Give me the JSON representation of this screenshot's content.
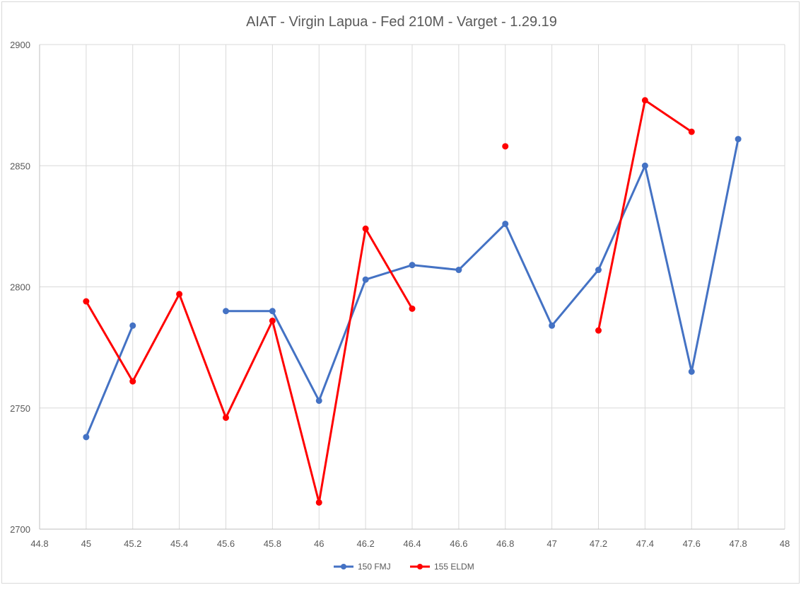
{
  "chart_data": {
    "type": "line",
    "title": "AIAT - Virgin Lapua - Fed 210M - Varget - 1.29.19",
    "xlabel": "",
    "ylabel": "",
    "xlim": [
      44.8,
      48
    ],
    "ylim": [
      2700,
      2900
    ],
    "x_ticks": [
      "44.8",
      "45",
      "45.2",
      "45.4",
      "45.6",
      "45.8",
      "46",
      "46.2",
      "46.4",
      "46.6",
      "46.8",
      "47",
      "47.2",
      "47.4",
      "47.6",
      "47.8",
      "48"
    ],
    "y_ticks": [
      "2700",
      "2750",
      "2800",
      "2850",
      "2900"
    ],
    "grid": true,
    "legend_position": "bottom",
    "series": [
      {
        "name": "150 FMJ",
        "color": "#4472c4",
        "x": [
          45,
          45.2,
          45.6,
          45.8,
          46,
          46.2,
          46.4,
          46.6,
          46.8,
          47,
          47.2,
          47.4,
          47.6,
          47.8
        ],
        "y": [
          2738,
          2784,
          2790,
          2790,
          2753,
          2803,
          2809,
          2807,
          2826,
          2784,
          2807,
          2850,
          2765,
          2861
        ],
        "segments": [
          [
            0,
            1
          ],
          [
            2,
            13
          ]
        ]
      },
      {
        "name": "155 ELDM",
        "color": "#ff0000",
        "x": [
          45,
          45.2,
          45.4,
          45.6,
          45.8,
          46,
          46.2,
          46.4,
          46.8,
          47.2,
          47.4,
          47.6
        ],
        "y": [
          2794,
          2761,
          2797,
          2746,
          2786,
          2711,
          2824,
          2791,
          2858,
          2782,
          2877,
          2864
        ],
        "segments": [
          [
            0,
            7
          ],
          [
            8,
            8
          ],
          [
            9,
            11
          ]
        ]
      }
    ]
  }
}
